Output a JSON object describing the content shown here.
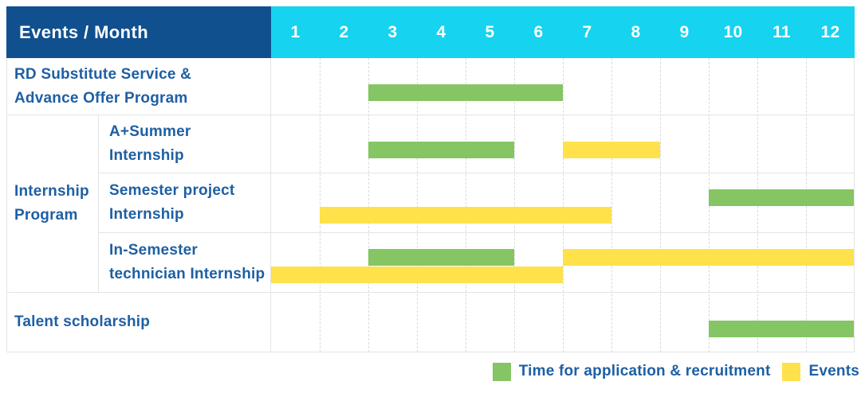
{
  "header": {
    "title": "Events / Month"
  },
  "colors": {
    "header_bg": "#11508F",
    "months_bg": "#16D3EF",
    "label_text": "#1E5FA4",
    "grid_solid": "#E4E4E4",
    "grid_dashed": "#D9D9D9",
    "application_green": "#85C564",
    "events_yellow": "#FFE14B"
  },
  "chart_data": {
    "type": "table",
    "subtype": "gantt-timeline",
    "title": "Events / Month",
    "x_label": "Month",
    "x_ticks": [
      "1",
      "2",
      "3",
      "4",
      "5",
      "6",
      "7",
      "8",
      "9",
      "10",
      "11",
      "12"
    ],
    "x_range": [
      1,
      12
    ],
    "grid": true,
    "legend_position": "bottom-right",
    "series": [
      {
        "key": "application",
        "name": "Time for application & recruitment",
        "color": "#85C564"
      },
      {
        "key": "events",
        "name": "Events",
        "color": "#FFE14B"
      }
    ],
    "rows": [
      {
        "group": "",
        "label": "RD Substitute Service &\nAdvance Offer Program",
        "lines": 1,
        "bars": [
          {
            "series": "application",
            "start_month": 3,
            "end_month": 6,
            "line": 0
          }
        ]
      },
      {
        "group": "Internship\nProgram",
        "label": "A+Summer\nInternship",
        "lines": 1,
        "bars": [
          {
            "series": "application",
            "start_month": 3,
            "end_month": 5,
            "line": 0
          },
          {
            "series": "events",
            "start_month": 7,
            "end_month": 8,
            "line": 0
          }
        ]
      },
      {
        "group": "Internship\nProgram",
        "label": "Semester project\nInternship",
        "lines": 2,
        "bars": [
          {
            "series": "application",
            "start_month": 10,
            "end_month": 12,
            "line": 0
          },
          {
            "series": "events",
            "start_month": 2,
            "end_month": 7,
            "line": 1
          }
        ]
      },
      {
        "group": "Internship\nProgram",
        "label": "In-Semester\ntechnician Internship",
        "lines": 2,
        "bars": [
          {
            "series": "application",
            "start_month": 3,
            "end_month": 5,
            "line": 0
          },
          {
            "series": "events",
            "start_month": 7,
            "end_month": 12,
            "line": 0
          },
          {
            "series": "events",
            "start_month": 1,
            "end_month": 6,
            "line": 1
          }
        ]
      },
      {
        "group": "",
        "label": "Talent scholarship",
        "lines": 1,
        "bars": [
          {
            "series": "application",
            "start_month": 10,
            "end_month": 12,
            "line": 0
          }
        ]
      }
    ]
  }
}
